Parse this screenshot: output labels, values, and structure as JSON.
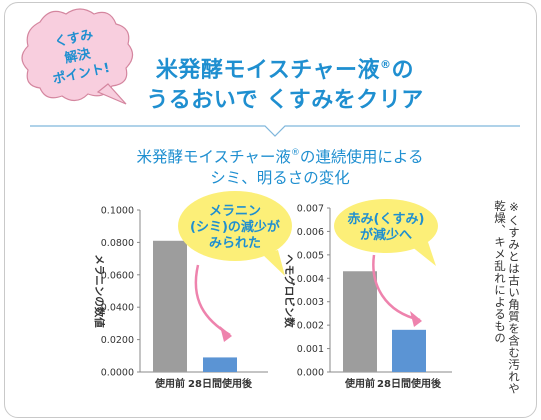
{
  "badge": {
    "line1": "くすみ",
    "line2": "解決",
    "line3": "ポイント!"
  },
  "headline": {
    "line1": "米発酵モイスチャー液",
    "reg": "®",
    "line1_end": "の",
    "line2": "うるおいで くすみをクリア"
  },
  "subhead": {
    "line1": "米発酵モイスチャー液",
    "reg": "®",
    "line1_end": "の連続使用による",
    "line2": "シミ、明るさの変化"
  },
  "note": "※くすみとは古い角質を含む汚れや乾燥、キメ乱れによるもの",
  "colors": {
    "accent_blue": "#1f8fd0",
    "bar_before": "#9d9d9d",
    "bar_after": "#5b94d4",
    "bubble": "#fcef78",
    "arrow": "#ee83ad",
    "badge_pink": "#f8cede"
  },
  "chart_data": [
    {
      "type": "bar",
      "categories": [
        "使用前",
        "28日間使用後"
      ],
      "values": [
        0.081,
        0.009
      ],
      "ylim": [
        0,
        0.1
      ],
      "yticks": [
        "0.0000",
        "0.0200",
        "0.0400",
        "0.0600",
        "0.0800",
        "0.1000"
      ],
      "ylabel": "メラニンの数値",
      "callout": {
        "line1": "メラニン",
        "line2": "(シミ)の減少が",
        "line3": "みられた"
      }
    },
    {
      "type": "bar",
      "categories": [
        "使用前",
        "28日間使用後"
      ],
      "values": [
        0.0043,
        0.0018
      ],
      "ylim": [
        0,
        0.007
      ],
      "yticks": [
        "0.000",
        "0.001",
        "0.002",
        "0.003",
        "0.004",
        "0.005",
        "0.006",
        "0.007"
      ],
      "ylabel": "ヘモグロビン数",
      "callout": {
        "line1": "赤み(くすみ)",
        "line2": "が減少へ"
      }
    }
  ]
}
